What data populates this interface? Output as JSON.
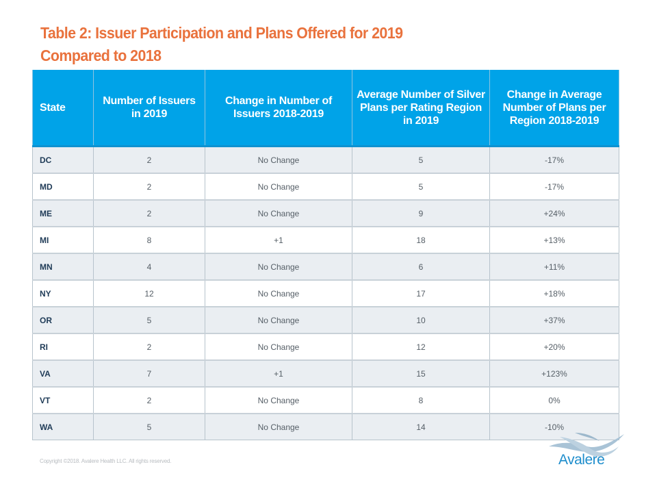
{
  "slide": {
    "title_line1": "Table 2: Issuer Participation and Plans Offered for 2019",
    "title_line2": "Compared to 2018",
    "copyright": "Copyright ©2018. Avalere Health LLC. All rights reserved.",
    "logo_text": "Avalere",
    "colors": {
      "title": "#e9723d",
      "header_bg": "#00a3e8",
      "row_alt": "#eaeef2",
      "logo": "#1e8dcc"
    }
  },
  "table": {
    "headers": [
      "State",
      "Number of Issuers in 2019",
      "Change in Number of Issuers 2018-2019",
      "Average Number of Silver Plans per Rating Region in 2019",
      "Change in Average Number of Plans per Region 2018-2019"
    ],
    "rows": [
      [
        "DC",
        "2",
        "No Change",
        "5",
        "-17%"
      ],
      [
        "MD",
        "2",
        "No Change",
        "5",
        "-17%"
      ],
      [
        "ME",
        "2",
        "No Change",
        "9",
        "+24%"
      ],
      [
        "MI",
        "8",
        "+1",
        "18",
        "+13%"
      ],
      [
        "MN",
        "4",
        "No Change",
        "6",
        "+11%"
      ],
      [
        "NY",
        "12",
        "No Change",
        "17",
        "+18%"
      ],
      [
        "OR",
        "5",
        "No Change",
        "10",
        "+37%"
      ],
      [
        "RI",
        "2",
        "No Change",
        "12",
        "+20%"
      ],
      [
        "VA",
        "7",
        "+1",
        "15",
        "+123%"
      ],
      [
        "VT",
        "2",
        "No Change",
        "8",
        "0%"
      ],
      [
        "WA",
        "5",
        "No Change",
        "14",
        "-10%"
      ]
    ]
  }
}
